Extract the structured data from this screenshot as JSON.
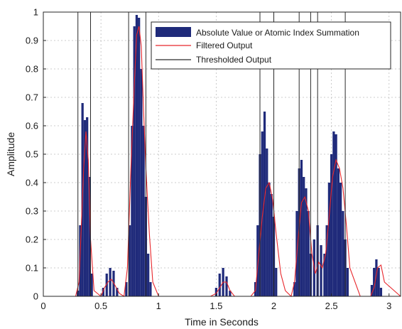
{
  "chart_data": {
    "type": "bar",
    "xlabel": "Time in Seconds",
    "ylabel": "Amplitude",
    "xlim": [
      0,
      3.1
    ],
    "ylim": [
      0,
      1
    ],
    "xticks": [
      0,
      0.5,
      1,
      1.5,
      2,
      2.5,
      3
    ],
    "xtick_labels": [
      "0",
      "0.5",
      "1",
      "1.5",
      "2",
      "2.5",
      "3"
    ],
    "yticks": [
      0,
      0.1,
      0.2,
      0.3,
      0.4,
      0.5,
      0.6,
      0.7,
      0.8,
      0.9,
      1
    ],
    "ytick_labels": [
      "0",
      "0.1",
      "0.2",
      "0.3",
      "0.4",
      "0.5",
      "0.6",
      "0.7",
      "0.8",
      "0.9",
      "1"
    ],
    "grid": true,
    "legend_position": "top-right",
    "series": [
      {
        "name": "Absolute Value or Atomic Index Summation",
        "style": "bars",
        "color": "#1f2a7a",
        "x": [
          0.3,
          0.32,
          0.34,
          0.36,
          0.38,
          0.4,
          0.42,
          0.52,
          0.55,
          0.58,
          0.61,
          0.64,
          0.72,
          0.75,
          0.77,
          0.79,
          0.81,
          0.83,
          0.85,
          0.87,
          0.89,
          0.91,
          0.93,
          1.5,
          1.53,
          1.56,
          1.59,
          1.62,
          1.84,
          1.86,
          1.88,
          1.9,
          1.92,
          1.94,
          1.96,
          1.98,
          2.0,
          2.02,
          2.18,
          2.2,
          2.22,
          2.24,
          2.26,
          2.28,
          2.3,
          2.32,
          2.35,
          2.38,
          2.41,
          2.44,
          2.46,
          2.48,
          2.5,
          2.52,
          2.54,
          2.56,
          2.58,
          2.6,
          2.62,
          2.64,
          2.85,
          2.87,
          2.89,
          2.91,
          2.93
        ],
        "values": [
          0.02,
          0.25,
          0.68,
          0.62,
          0.63,
          0.42,
          0.08,
          0.03,
          0.08,
          0.1,
          0.09,
          0.03,
          0.05,
          0.25,
          0.6,
          0.95,
          0.99,
          0.98,
          0.8,
          0.6,
          0.35,
          0.15,
          0.05,
          0.03,
          0.08,
          0.1,
          0.07,
          0.02,
          0.05,
          0.25,
          0.5,
          0.58,
          0.65,
          0.52,
          0.4,
          0.36,
          0.28,
          0.1,
          0.05,
          0.3,
          0.45,
          0.48,
          0.42,
          0.38,
          0.3,
          0.15,
          0.2,
          0.25,
          0.18,
          0.15,
          0.25,
          0.4,
          0.5,
          0.58,
          0.57,
          0.45,
          0.4,
          0.3,
          0.2,
          0.1,
          0.04,
          0.1,
          0.13,
          0.1,
          0.03
        ]
      },
      {
        "name": "Filtered Output",
        "style": "line",
        "color": "#e8262b",
        "x": [
          0,
          0.28,
          0.31,
          0.33,
          0.35,
          0.37,
          0.39,
          0.41,
          0.44,
          0.5,
          0.53,
          0.56,
          0.59,
          0.62,
          0.66,
          0.7,
          0.73,
          0.76,
          0.79,
          0.81,
          0.83,
          0.85,
          0.87,
          0.89,
          0.92,
          0.95,
          1.0,
          1.45,
          1.5,
          1.53,
          1.56,
          1.59,
          1.62,
          1.66,
          1.8,
          1.84,
          1.87,
          1.9,
          1.93,
          1.96,
          1.99,
          2.02,
          2.06,
          2.1,
          2.15,
          2.18,
          2.21,
          2.24,
          2.27,
          2.3,
          2.33,
          2.36,
          2.39,
          2.42,
          2.45,
          2.48,
          2.51,
          2.54,
          2.57,
          2.6,
          2.63,
          2.66,
          2.75,
          2.84,
          2.87,
          2.9,
          2.93,
          2.96,
          3.1
        ],
        "values": [
          0,
          0,
          0.05,
          0.25,
          0.45,
          0.58,
          0.48,
          0.2,
          0.02,
          0,
          0.03,
          0.05,
          0.06,
          0.04,
          0.01,
          0,
          0.1,
          0.45,
          0.75,
          0.92,
          0.95,
          0.88,
          0.65,
          0.45,
          0.22,
          0.05,
          0,
          0,
          0.01,
          0.03,
          0.05,
          0.05,
          0.02,
          0,
          0,
          0.02,
          0.15,
          0.28,
          0.38,
          0.4,
          0.34,
          0.22,
          0.08,
          0.02,
          0,
          0.05,
          0.2,
          0.33,
          0.35,
          0.3,
          0.15,
          0.08,
          0.12,
          0.1,
          0.15,
          0.28,
          0.42,
          0.48,
          0.45,
          0.38,
          0.25,
          0.1,
          0,
          0,
          0.03,
          0.1,
          0.11,
          0.05,
          0
        ]
      },
      {
        "name": "Thresholded Output",
        "style": "step",
        "color": "#2b2b2b",
        "intervals": [
          [
            0.3,
            0.41
          ],
          [
            0.74,
            0.89
          ],
          [
            1.88,
            2.0
          ],
          [
            2.22,
            2.32
          ],
          [
            2.38,
            2.62
          ]
        ],
        "level_high": 1,
        "level_low": 0
      }
    ]
  }
}
